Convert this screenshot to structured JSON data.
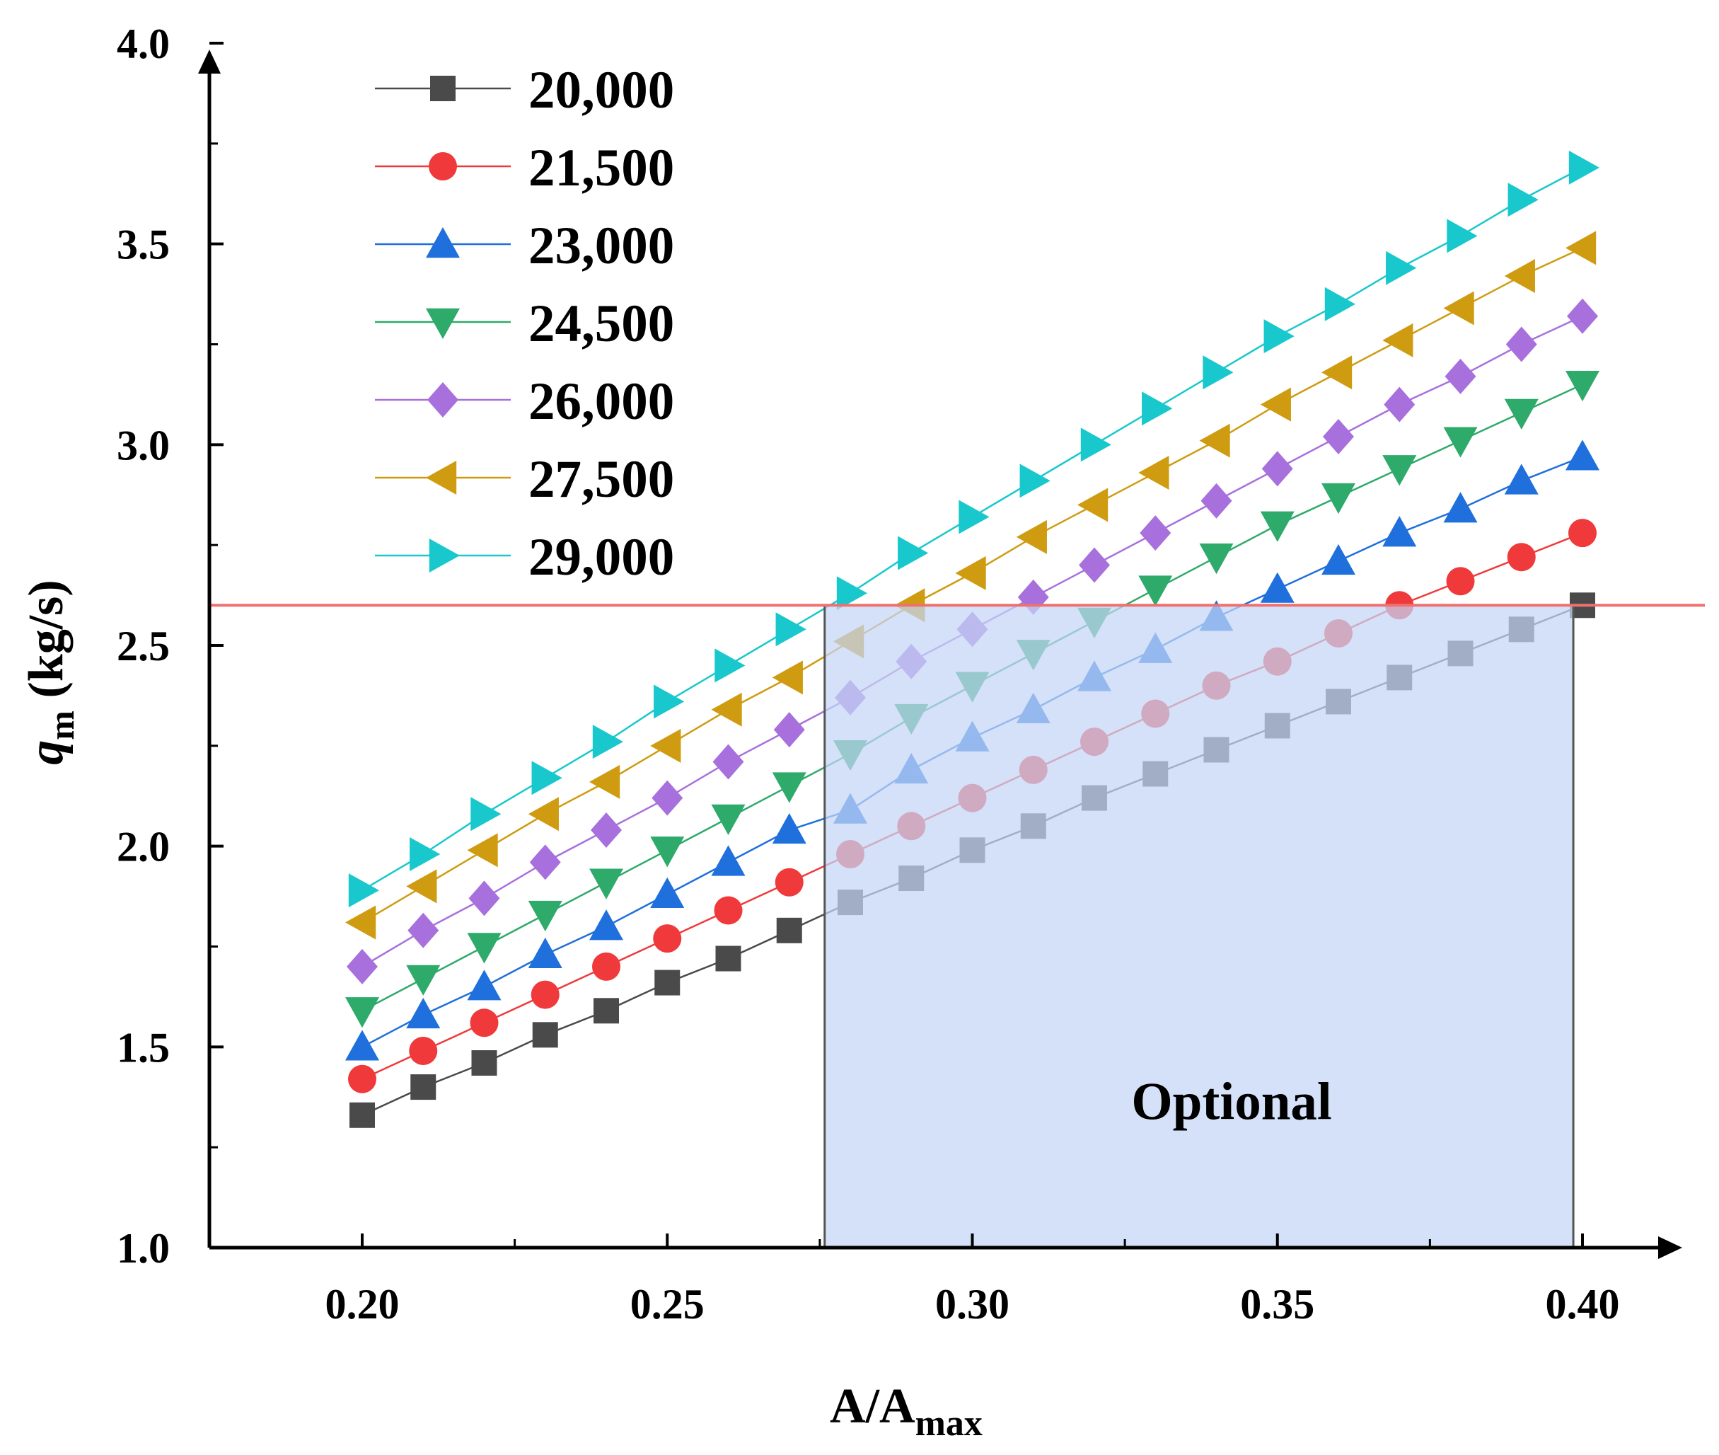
{
  "chart_data": {
    "type": "line",
    "xlabel": "A/A",
    "xlabel_sub": "max",
    "ylabel": "q",
    "ylabel_sub": "m",
    "ylabel_unit": " (kg/s)",
    "xlim": [
      0.175,
      0.42
    ],
    "ylim": [
      1.0,
      4.0
    ],
    "x_ticks": [
      "0.20",
      "0.25",
      "0.30",
      "0.35",
      "0.40"
    ],
    "y_ticks": [
      "1.0",
      "1.5",
      "2.0",
      "2.5",
      "3.0",
      "3.5",
      "4.0"
    ],
    "x": [
      0.2,
      0.21,
      0.22,
      0.23,
      0.24,
      0.25,
      0.26,
      0.27,
      0.28,
      0.29,
      0.3,
      0.31,
      0.32,
      0.33,
      0.34,
      0.35,
      0.36,
      0.37,
      0.38,
      0.39,
      0.4
    ],
    "legend_position": "top-left",
    "series": [
      {
        "name": "20,000",
        "marker": "square",
        "color": "#4a4a4a",
        "values": [
          1.33,
          1.4,
          1.46,
          1.53,
          1.59,
          1.66,
          1.72,
          1.79,
          1.86,
          1.92,
          1.99,
          2.05,
          2.12,
          2.18,
          2.24,
          2.3,
          2.36,
          2.42,
          2.48,
          2.54,
          2.6
        ]
      },
      {
        "name": "21,500",
        "marker": "circle",
        "color": "#f0393b",
        "values": [
          1.42,
          1.49,
          1.56,
          1.63,
          1.7,
          1.77,
          1.84,
          1.91,
          1.98,
          2.05,
          2.12,
          2.19,
          2.26,
          2.33,
          2.4,
          2.46,
          2.53,
          2.6,
          2.66,
          2.72,
          2.78
        ]
      },
      {
        "name": "23,000",
        "marker": "triangle-up",
        "color": "#1f6fdc",
        "values": [
          1.5,
          1.58,
          1.65,
          1.73,
          1.8,
          1.88,
          1.96,
          2.04,
          2.09,
          2.19,
          2.27,
          2.34,
          2.42,
          2.49,
          2.57,
          2.64,
          2.71,
          2.78,
          2.84,
          2.91,
          2.97
        ]
      },
      {
        "name": "24,500",
        "marker": "triangle-down",
        "color": "#2eaa6a",
        "values": [
          1.59,
          1.67,
          1.75,
          1.83,
          1.91,
          1.99,
          2.07,
          2.15,
          2.23,
          2.32,
          2.4,
          2.48,
          2.56,
          2.64,
          2.72,
          2.8,
          2.87,
          2.94,
          3.01,
          3.08,
          3.15
        ]
      },
      {
        "name": "26,000",
        "marker": "diamond",
        "color": "#a870dd",
        "values": [
          1.7,
          1.79,
          1.87,
          1.96,
          2.04,
          2.12,
          2.21,
          2.29,
          2.37,
          2.46,
          2.54,
          2.62,
          2.7,
          2.78,
          2.86,
          2.94,
          3.02,
          3.1,
          3.17,
          3.25,
          3.32
        ]
      },
      {
        "name": "27,500",
        "marker": "triangle-left",
        "color": "#cf9b10",
        "values": [
          1.81,
          1.9,
          1.99,
          2.08,
          2.16,
          2.25,
          2.34,
          2.42,
          2.51,
          2.6,
          2.68,
          2.77,
          2.85,
          2.93,
          3.01,
          3.1,
          3.18,
          3.26,
          3.34,
          3.42,
          3.49
        ]
      },
      {
        "name": "29,000",
        "marker": "triangle-right",
        "color": "#18c8cc",
        "values": [
          1.89,
          1.98,
          2.08,
          2.17,
          2.26,
          2.36,
          2.45,
          2.54,
          2.63,
          2.73,
          2.82,
          2.91,
          3.0,
          3.09,
          3.18,
          3.27,
          3.35,
          3.44,
          3.52,
          3.61,
          3.69
        ]
      }
    ],
    "threshold": {
      "y": 2.6,
      "color": "#f07070"
    },
    "optional_region": {
      "x": [
        0.2758,
        0.3985
      ],
      "y": [
        1.0,
        2.6
      ],
      "label": "Optional",
      "fill": "#c3d5f5",
      "opacity": 0.72
    }
  }
}
